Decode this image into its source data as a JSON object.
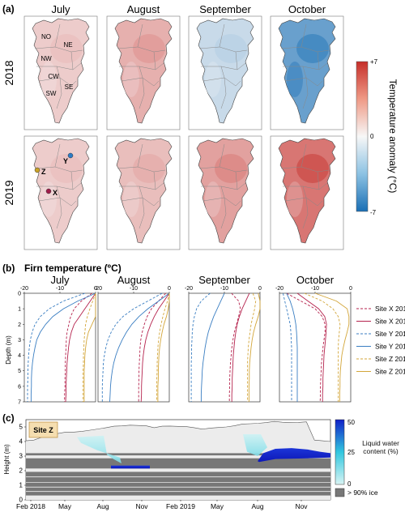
{
  "panel_labels": {
    "a": "(a)",
    "b": "(b)",
    "c": "(c)"
  },
  "panel_a": {
    "months": [
      "July",
      "August",
      "September",
      "October"
    ],
    "years": [
      "2018",
      "2019"
    ],
    "colorbar": {
      "label": "Temperature anomaly (°C)",
      "max_label": "+7",
      "mid_label": "0",
      "min_label": "-7",
      "max_color": "#c62f2a",
      "min_color": "#1a6fb5"
    },
    "regions": [
      "NO",
      "NE",
      "NW",
      "CW",
      "SE",
      "SW"
    ],
    "sites": [
      {
        "label": "X",
        "color": "#a01c4a"
      },
      {
        "label": "Y",
        "color": "#2b7cc7"
      },
      {
        "label": "Z",
        "color": "#c9a227"
      }
    ]
  },
  "panel_b": {
    "title": "Firn temperature (ºC)",
    "ylabel": "Depth (m)",
    "x_ticks": [
      "-20",
      "-10",
      "0"
    ],
    "y_ticks": [
      "0",
      "1",
      "2",
      "3",
      "4",
      "5",
      "6",
      "7"
    ],
    "legend": [
      "Site X 2018",
      "Site X 2019",
      "Site Y 2018",
      "Site Y 2019",
      "Site Z 2018",
      "Site Z 2019"
    ]
  },
  "panel_c": {
    "site_label": "Site Z",
    "ylabel": "Height (m)",
    "y_ticks": [
      "0",
      "1",
      "2",
      "3",
      "4",
      "5"
    ],
    "x_ticks": [
      "Feb 2018",
      "May",
      "Aug",
      "Nov",
      "Feb 2019",
      "May",
      "Aug",
      "Nov"
    ],
    "colorbar": {
      "label": "Liquid water content (%)",
      "ticks": [
        "50",
        "25",
        "0"
      ],
      "top_color": "#1020c8",
      "bottom_color": "#d8f4f4"
    },
    "ice_legend": "> 90% ice"
  },
  "chart_data": [
    {
      "type": "heatmap",
      "title": "",
      "rows": [
        "2018",
        "2019"
      ],
      "columns": [
        "July",
        "August",
        "September",
        "October"
      ],
      "color_range": [
        -7,
        7
      ],
      "anomaly_pattern": [
        [
          1.5,
          2.5,
          -1.5,
          -4.5
        ],
        [
          1.5,
          2,
          3,
          4.5
        ]
      ]
    },
    {
      "type": "line",
      "title": "Firn temperature (ºC)",
      "xlim": [
        -20,
        0
      ],
      "ylim": [
        7,
        0
      ],
      "xlabel": "",
      "ylabel": "Depth (m)",
      "depth": [
        0,
        0.5,
        1,
        1.5,
        2,
        2.5,
        3,
        3.5,
        4,
        4.5,
        5,
        5.5,
        6,
        6.5,
        7
      ],
      "months": [
        {
          "name": "July",
          "series": [
            {
              "name": "Site X 2018",
              "values": [
                -1,
                -4,
                -6,
                -7,
                -7.5,
                -8,
                -8.2,
                -8.3,
                -8.4,
                -8.5,
                -8.5,
                -8.6,
                -8.6,
                -8.7,
                -8.7
              ]
            },
            {
              "name": "Site X 2019",
              "values": [
                0,
                -1.5,
                -3,
                -4.5,
                -6,
                -6.8,
                -7.3,
                -7.6,
                -7.8,
                -8,
                -8.1,
                -8.2,
                -8.3,
                -8.3,
                -8.4
              ]
            },
            {
              "name": "Site Y 2018",
              "values": [
                -3,
                -9,
                -13,
                -15.5,
                -17,
                -17.8,
                -18.3,
                -18.6,
                -18.8,
                -18.9,
                -19,
                -19,
                -19.1,
                -19.1,
                -19.1
              ]
            },
            {
              "name": "Site Y 2019",
              "values": [
                0,
                -5,
                -9,
                -12,
                -14,
                -15.5,
                -16.5,
                -17,
                -17.4,
                -17.7,
                -17.9,
                -18,
                -18,
                -18.1,
                -18.1
              ]
            },
            {
              "name": "Site Z 2018",
              "values": [
                0,
                -0.8,
                -1.6,
                -2.3,
                -2.8,
                -3,
                -3.2,
                -3.3,
                -3.4,
                -3.4,
                -3.5,
                -3.5,
                -3.5,
                -3.5,
                -3.5
              ]
            },
            {
              "name": "Site Z 2019",
              "values": [
                0,
                0,
                0,
                0,
                -1,
                -2,
                -2.5,
                -2.8,
                -3,
                -3.1,
                -3.2,
                -3.2,
                -3.2,
                -3.2,
                -3.2
              ]
            }
          ]
        },
        {
          "name": "August",
          "series": [
            {
              "name": "Site X 2018",
              "values": [
                -1,
                -3,
                -5,
                -6.2,
                -7,
                -7.6,
                -8,
                -8.2,
                -8.3,
                -8.4,
                -8.5,
                -8.5,
                -8.6,
                -8.6,
                -8.6
              ]
            },
            {
              "name": "Site X 2019",
              "values": [
                0,
                -1.5,
                -3,
                -4.2,
                -5.2,
                -6,
                -6.6,
                -7,
                -7.3,
                -7.5,
                -7.6,
                -7.7,
                -7.8,
                -7.8,
                -7.9
              ]
            },
            {
              "name": "Site Y 2018",
              "values": [
                -2,
                -6,
                -10,
                -13,
                -15,
                -16.3,
                -17.2,
                -17.8,
                -18.2,
                -18.5,
                -18.6,
                -18.7,
                -18.8,
                -18.8,
                -18.8
              ]
            },
            {
              "name": "Site Y 2019",
              "values": [
                0,
                -3,
                -6,
                -8.5,
                -10.5,
                -12,
                -13.2,
                -14.2,
                -15,
                -15.6,
                -16,
                -16.3,
                -16.5,
                -16.6,
                -16.7
              ]
            },
            {
              "name": "Site Z 2018",
              "values": [
                0,
                -0.5,
                -1.2,
                -1.8,
                -2.3,
                -2.7,
                -3,
                -3.2,
                -3.3,
                -3.4,
                -3.4,
                -3.5,
                -3.5,
                -3.5,
                -3.5
              ]
            },
            {
              "name": "Site Z 2019",
              "values": [
                0,
                0,
                -0.3,
                -0.8,
                -1.5,
                -2,
                -2.4,
                -2.7,
                -2.9,
                -3,
                -3.1,
                -3.1,
                -3.2,
                -3.2,
                -3.2
              ]
            }
          ]
        },
        {
          "name": "September",
          "series": [
            {
              "name": "Site X 2018",
              "values": [
                -8,
                -6,
                -5.5,
                -6,
                -6.6,
                -7.2,
                -7.6,
                -7.9,
                -8.1,
                -8.3,
                -8.4,
                -8.5,
                -8.5,
                -8.6,
                -8.6
              ]
            },
            {
              "name": "Site X 2019",
              "values": [
                -3,
                -4,
                -5,
                -5.8,
                -6.4,
                -6.8,
                -7.1,
                -7.3,
                -7.5,
                -7.6,
                -7.7,
                -7.8,
                -7.8,
                -7.9,
                -7.9
              ]
            },
            {
              "name": "Site Y 2018",
              "values": [
                -14,
                -16.5,
                -17.8,
                -18.4,
                -18.8,
                -19,
                -19.1,
                -19.2,
                -19.2,
                -19.3,
                -19.3,
                -19.3,
                -19.3,
                -19.3,
                -19.3
              ]
            },
            {
              "name": "Site Y 2019",
              "values": [
                -10,
                -11,
                -12,
                -13,
                -13.8,
                -14.5,
                -15,
                -15.4,
                -15.7,
                -16,
                -16.2,
                -16.3,
                -16.4,
                -16.5,
                -16.5
              ]
            },
            {
              "name": "Site Z 2018",
              "values": [
                -2,
                -1.2,
                -1.5,
                -2,
                -2.5,
                -2.8,
                -3.1,
                -3.3,
                -3.4,
                -3.5,
                -3.5,
                -3.5,
                -3.5,
                -3.5,
                -3.5
              ]
            },
            {
              "name": "Site Z 2019",
              "values": [
                -0.5,
                0,
                0,
                -0.5,
                -1.2,
                -1.8,
                -2.2,
                -2.5,
                -2.7,
                -2.9,
                -3,
                -3,
                -3.1,
                -3.1,
                -3.1
              ]
            }
          ]
        },
        {
          "name": "October",
          "series": [
            {
              "name": "Site X 2018",
              "values": [
                -18,
                -14,
                -10,
                -8,
                -7.2,
                -7.2,
                -7.5,
                -7.8,
                -8,
                -8.2,
                -8.3,
                -8.4,
                -8.5,
                -8.5,
                -8.6
              ]
            },
            {
              "name": "Site X 2019",
              "values": [
                -15,
                -12,
                -9,
                -7.3,
                -6.8,
                -6.9,
                -7.1,
                -7.3,
                -7.5,
                -7.6,
                -7.7,
                -7.8,
                -7.8,
                -7.9,
                -7.9
              ]
            },
            {
              "name": "Site Y 2018",
              "values": [
                -19,
                -18.5,
                -18,
                -17.5,
                -17,
                -16.8,
                -16.7,
                -16.6,
                -16.6,
                -16.6,
                -16.6,
                -16.6,
                -16.6,
                -16.6,
                -16.6
              ]
            },
            {
              "name": "Site Y 2019",
              "values": [
                -18,
                -17,
                -16.3,
                -15.8,
                -15.4,
                -15.2,
                -15.1,
                -15,
                -15,
                -15,
                -15,
                -15,
                -15,
                -15,
                -15
              ]
            },
            {
              "name": "Site Z 2018",
              "values": [
                -13,
                -8,
                -5,
                -3.5,
                -3,
                -3.2,
                -3.4,
                -3.5,
                -3.5,
                -3.5,
                -3.5,
                -3.5,
                -3.5,
                -3.5,
                -3.5
              ]
            },
            {
              "name": "Site Z 2019",
              "values": [
                -10,
                -4,
                -1,
                -0.5,
                -0.5,
                -1,
                -1.6,
                -2.1,
                -2.5,
                -2.7,
                -2.9,
                -3,
                -3,
                -3.1,
                -3.1
              ]
            }
          ]
        }
      ]
    },
    {
      "type": "area",
      "title": "",
      "ylabel": "Height (m)",
      "ylim": [
        0,
        5.5
      ],
      "x_ticks": [
        "Feb 2018",
        "May",
        "Aug",
        "Nov",
        "Feb 2019",
        "May",
        "Aug",
        "Nov"
      ],
      "surface_height": [
        4.05,
        4.1,
        4.3,
        4.45,
        4.55,
        4.65,
        4.65,
        4.7,
        4.78,
        4.86,
        4.95,
        5.05,
        5.07,
        5.12,
        5.1,
        5.08,
        4.95,
        5.05,
        5.06,
        5.04,
        5.02,
        4.95,
        4.85,
        4.92,
        4.96,
        5.0,
        5.08,
        5.2,
        5.22,
        5.25,
        5.3,
        5.38,
        5.32,
        5.3,
        5.31,
        5.35,
        4.1,
        4.05,
        4.0
      ],
      "ice_bands_m": [
        [
          0.3,
          0.55
        ],
        [
          0.6,
          0.85
        ],
        [
          0.9,
          1.18
        ],
        [
          1.22,
          1.55
        ],
        [
          1.6,
          1.92
        ],
        [
          2.15,
          2.85
        ],
        [
          3.05,
          3.2
        ]
      ],
      "wet_events": [
        {
          "period": "May–Aug 2018",
          "lwc_percent_max": 50,
          "depth_range_m": [
            2.2,
            4.3
          ]
        },
        {
          "period": "Jun–Dec 2019",
          "lwc_percent_max": 50,
          "depth_range_m": [
            2.6,
            4.5
          ]
        }
      ]
    }
  ]
}
